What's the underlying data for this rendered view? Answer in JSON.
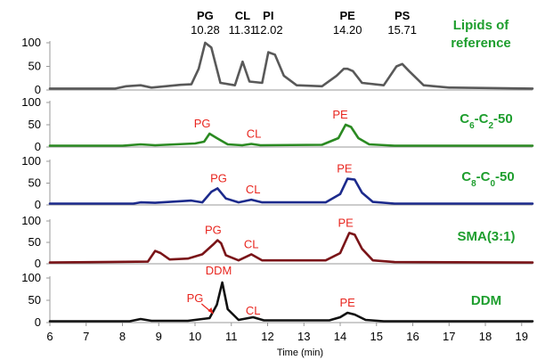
{
  "chart_data": {
    "type": "line",
    "xlabel": "Time (min)",
    "xlim": [
      6,
      19.3
    ],
    "x_ticks": [
      "6",
      "7",
      "8",
      "9",
      "10",
      "11",
      "12",
      "13",
      "14",
      "15",
      "16",
      "17",
      "18",
      "19"
    ],
    "colors": {
      "annotation": "#e8261f",
      "series_label": "#1e9e2e"
    },
    "panels": [
      {
        "name": "Lipids of reference",
        "label_parts": [
          {
            "t": "Lipids of",
            "sub": false
          }
        ],
        "label_line2": "reference",
        "color": "#595959",
        "ylim": [
          0,
          100
        ],
        "y_ticks": [
          "100",
          "50",
          "0"
        ],
        "baseline": 3,
        "x": [
          6,
          7.8,
          8.1,
          8.5,
          8.8,
          9.6,
          9.9,
          10.1,
          10.28,
          10.45,
          10.7,
          11.1,
          11.31,
          11.5,
          11.85,
          12.02,
          12.2,
          12.45,
          12.8,
          13.5,
          13.9,
          14.1,
          14.2,
          14.35,
          14.6,
          15.2,
          15.55,
          15.71,
          15.9,
          16.3,
          17,
          19.3
        ],
        "y": [
          3,
          3,
          8,
          10,
          5,
          11,
          12,
          45,
          100,
          90,
          15,
          10,
          60,
          18,
          15,
          80,
          75,
          30,
          10,
          8,
          30,
          45,
          45,
          40,
          15,
          10,
          50,
          55,
          40,
          10,
          5,
          3
        ],
        "peak_labels": [
          {
            "name": "PG",
            "time": "10.28",
            "x": 10.28
          },
          {
            "name": "CL",
            "time": "11.31",
            "x": 11.31
          },
          {
            "name": "PI",
            "time": "12.02",
            "x": 12.02
          },
          {
            "name": "PE",
            "time": "14.20",
            "x": 14.2
          },
          {
            "name": "PS",
            "time": "15.71",
            "x": 15.71
          }
        ],
        "annotations": []
      },
      {
        "name": "C6-C2-50",
        "label_parts": [
          {
            "t": "C",
            "sub": false
          },
          {
            "t": "6",
            "sub": true
          },
          {
            "t": "-C",
            "sub": false
          },
          {
            "t": "2",
            "sub": true
          },
          {
            "t": "-50",
            "sub": false
          }
        ],
        "color": "#2b8a22",
        "ylim": [
          0,
          100
        ],
        "y_ticks": [
          "100",
          "50",
          "0"
        ],
        "baseline": 3,
        "x": [
          6,
          8.0,
          8.5,
          8.9,
          10.0,
          10.25,
          10.4,
          10.6,
          10.9,
          11.3,
          11.55,
          11.8,
          13.5,
          13.95,
          14.15,
          14.3,
          14.5,
          14.8,
          15.5,
          19.3
        ],
        "y": [
          3,
          3,
          6,
          4,
          8,
          12,
          30,
          20,
          6,
          4,
          7,
          4,
          5,
          20,
          50,
          45,
          20,
          6,
          3,
          3
        ],
        "annotations": [
          {
            "text": "PG",
            "x": 10.2
          },
          {
            "text": "CL",
            "x": 11.62
          },
          {
            "text": "PE",
            "x": 14.0
          }
        ]
      },
      {
        "name": "C8-C0-50",
        "label_parts": [
          {
            "t": "C",
            "sub": false
          },
          {
            "t": "8",
            "sub": true
          },
          {
            "t": "-C",
            "sub": false
          },
          {
            "t": "0",
            "sub": true
          },
          {
            "t": "-50",
            "sub": false
          }
        ],
        "color": "#1c2a8c",
        "ylim": [
          0,
          100
        ],
        "y_ticks": [
          "100",
          "50",
          "0"
        ],
        "baseline": 3,
        "x": [
          6,
          8.3,
          8.5,
          8.9,
          9.9,
          10.2,
          10.45,
          10.62,
          10.85,
          11.2,
          11.55,
          11.85,
          13.6,
          14.0,
          14.2,
          14.4,
          14.6,
          14.9,
          15.5,
          19.3
        ],
        "y": [
          3,
          3,
          6,
          5,
          10,
          6,
          30,
          38,
          15,
          6,
          12,
          6,
          6,
          25,
          60,
          58,
          28,
          7,
          3,
          3
        ],
        "annotations": [
          {
            "text": "PG",
            "x": 10.65
          },
          {
            "text": "CL",
            "x": 11.6
          },
          {
            "text": "PE",
            "x": 14.12
          }
        ]
      },
      {
        "name": "SMA(3:1)",
        "label_parts": [
          {
            "t": "SMA(3:1)",
            "sub": false
          }
        ],
        "color": "#7a1418",
        "ylim": [
          0,
          100
        ],
        "y_ticks": [
          "100",
          "50",
          "0"
        ],
        "baseline": 3,
        "x": [
          6,
          8.7,
          8.9,
          9.05,
          9.3,
          9.8,
          10.2,
          10.5,
          10.62,
          10.72,
          10.85,
          11.2,
          11.55,
          11.85,
          13.6,
          14.0,
          14.25,
          14.4,
          14.6,
          14.9,
          15.5,
          19.3
        ],
        "y": [
          3,
          5,
          30,
          25,
          10,
          12,
          22,
          45,
          55,
          48,
          20,
          8,
          22,
          8,
          8,
          25,
          72,
          68,
          35,
          8,
          4,
          3
        ],
        "annotations": [
          {
            "text": "PG",
            "x": 10.5
          },
          {
            "text": "CL",
            "x": 11.55
          },
          {
            "text": "PE",
            "x": 14.15
          }
        ]
      },
      {
        "name": "DDM",
        "label_parts": [
          {
            "t": "DDM",
            "sub": false
          }
        ],
        "color": "#111111",
        "ylim": [
          0,
          100
        ],
        "y_ticks": [
          "100",
          "50",
          "0"
        ],
        "baseline": 3,
        "x": [
          6,
          8.2,
          8.5,
          8.8,
          9.8,
          10.4,
          10.6,
          10.75,
          10.9,
          11.2,
          11.6,
          11.9,
          13.7,
          14.0,
          14.2,
          14.4,
          14.7,
          15.2,
          19.3
        ],
        "y": [
          3,
          3,
          8,
          4,
          4,
          10,
          40,
          90,
          30,
          6,
          12,
          5,
          5,
          12,
          22,
          18,
          6,
          3,
          3
        ],
        "annotations": [
          {
            "text": "DDM",
            "x": 10.65
          },
          {
            "text": "PG",
            "x": 10.0
          },
          {
            "text": "CL",
            "x": 11.6
          },
          {
            "text": "PE",
            "x": 14.2
          }
        ]
      }
    ]
  }
}
